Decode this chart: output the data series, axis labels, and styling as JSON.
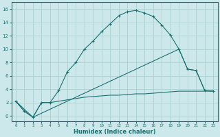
{
  "background_color": "#cce8ea",
  "grid_color": "#b0d4d6",
  "line_color": "#1a7070",
  "xlabel": "Humidex (Indice chaleur)",
  "xlim": [
    -0.5,
    23.5
  ],
  "ylim": [
    -0.8,
    17.0
  ],
  "xticks": [
    0,
    1,
    2,
    3,
    4,
    5,
    6,
    7,
    8,
    9,
    10,
    11,
    12,
    13,
    14,
    15,
    16,
    17,
    18,
    19,
    20,
    21,
    22,
    23
  ],
  "yticks": [
    0,
    2,
    4,
    6,
    8,
    10,
    12,
    14,
    16
  ],
  "curve1_x": [
    0,
    1,
    2,
    3,
    4,
    5,
    6,
    7,
    8,
    9,
    10,
    11,
    12,
    13,
    14,
    15,
    16,
    17,
    18,
    19,
    20,
    21,
    22,
    23
  ],
  "curve1_y": [
    2.2,
    0.7,
    -0.2,
    2.0,
    2.0,
    3.8,
    6.6,
    8.0,
    10.0,
    11.2,
    12.6,
    13.8,
    15.0,
    15.6,
    15.8,
    15.4,
    14.9,
    13.6,
    12.1,
    10.0,
    7.0,
    6.8,
    3.8,
    3.7
  ],
  "curve2_x": [
    0,
    2,
    19,
    20,
    21,
    22,
    23
  ],
  "curve2_y": [
    2.2,
    -0.2,
    10.0,
    7.0,
    6.8,
    3.8,
    3.7
  ],
  "curve3_x": [
    0,
    1,
    2,
    3,
    4,
    5,
    6,
    7,
    8,
    9,
    10,
    11,
    12,
    13,
    14,
    15,
    16,
    17,
    18,
    19,
    20,
    21,
    22,
    23
  ],
  "curve3_y": [
    2.2,
    0.7,
    -0.2,
    2.0,
    2.0,
    2.2,
    2.4,
    2.6,
    2.8,
    2.9,
    3.0,
    3.1,
    3.1,
    3.2,
    3.3,
    3.3,
    3.4,
    3.5,
    3.6,
    3.7,
    3.7,
    3.7,
    3.7,
    3.7
  ]
}
